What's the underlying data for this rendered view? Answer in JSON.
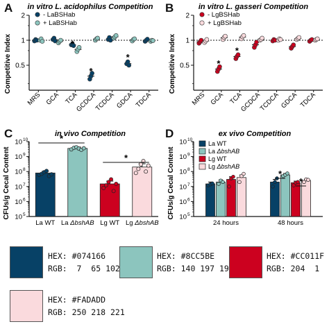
{
  "panels": [
    {
      "letter": "A",
      "title": "in vitro L. acidophilus Competition",
      "ylabel": "Competitive Index",
      "legend": [
        "- LaBSHab",
        "+ LaBSHab"
      ],
      "categories": [
        "MRS",
        "GCA",
        "TCA",
        "GCDCA",
        "TCDCA",
        "GDCA",
        "TDCA"
      ],
      "ylim": [
        0.25,
        2
      ],
      "yticks": [
        "2",
        "1",
        "0.5"
      ],
      "colors": {
        "minus": "#074166",
        "plus": "#8CC5BE"
      }
    },
    {
      "letter": "B",
      "title": "in vitro L. gasseri Competition",
      "ylabel": "Competitive Index",
      "legend": [
        "- LgBSHab",
        "+ LgBSHab"
      ],
      "categories": [
        "MRS",
        "GCA",
        "TCA",
        "GCDCA",
        "TCDCA",
        "GDCA",
        "TDCA"
      ],
      "ylim": [
        0.25,
        2
      ],
      "yticks": [
        "2",
        "1",
        "0.5"
      ],
      "colors": {
        "minus": "#CC011F",
        "plus": "#FADADD"
      }
    },
    {
      "letter": "C",
      "title": "in vivo Competition",
      "ylabel": "CFUs/g Cecal Content",
      "categories": [
        "La WT",
        "La ΔbshAB",
        "Lg WT",
        "Lg ΔbshAB"
      ],
      "ylim": [
        100000,
        10000000000
      ],
      "yticks": [
        "10",
        "10",
        "10",
        "10",
        "10",
        "10"
      ],
      "ytick_exp": [
        "10",
        "9",
        "8",
        "7",
        "6",
        "5"
      ]
    },
    {
      "letter": "D",
      "title": "ex vivo Competition",
      "ylabel": "CFUs/g Cecal Content",
      "legend": [
        "La WT",
        "La ΔbshAB",
        "Lg WT",
        "Lg ΔbshAB"
      ],
      "categories": [
        "24 hours",
        "48 hours"
      ],
      "ylim": [
        100000,
        10000000000
      ],
      "yticks": [
        "10",
        "10",
        "10",
        "10",
        "10",
        "10"
      ],
      "ytick_exp": [
        "10",
        "9",
        "8",
        "7",
        "6",
        "5"
      ]
    }
  ],
  "chart_data": [
    {
      "type": "scatter",
      "title": "in vitro L. acidophilus Competition",
      "ylabel": "Competitive Index",
      "yscale": "log2",
      "ylim": [
        0.25,
        2
      ],
      "categories": [
        "MRS",
        "GCA",
        "TCA",
        "GCDCA",
        "TCDCA",
        "GDCA",
        "TDCA"
      ],
      "series": [
        {
          "name": "- LaBSHab",
          "values": [
            [
              0.98,
              1.02,
              1.0
            ],
            [
              1.02,
              1.06,
              0.98
            ],
            [
              0.88,
              0.9,
              0.86
            ],
            [
              0.34,
              0.37,
              0.4
            ],
            [
              1.02,
              1.08,
              1.0
            ],
            [
              0.52,
              0.55,
              0.5
            ],
            [
              0.97,
              1.0,
              1.03
            ]
          ]
        },
        {
          "name": "+ LaBSHab",
          "values": [
            [
              1.0,
              1.04,
              0.97
            ],
            [
              0.93,
              0.97,
              1.0
            ],
            [
              0.73,
              0.78,
              0.82
            ],
            [
              1.0,
              1.04,
              1.06
            ],
            [
              1.06,
              1.1,
              1.14
            ],
            [
              0.98,
              1.02,
              1.04
            ],
            [
              0.97,
              1.0,
              0.99
            ]
          ]
        }
      ],
      "significance": [
        "",
        "",
        "*",
        "*",
        "",
        "*",
        ""
      ]
    },
    {
      "type": "scatter",
      "title": "in vitro L. gasseri Competition",
      "ylabel": "Competitive Index",
      "yscale": "log2",
      "ylim": [
        0.25,
        2
      ],
      "categories": [
        "MRS",
        "GCA",
        "TCA",
        "GCDCA",
        "TCDCA",
        "GDCA",
        "TDCA"
      ],
      "series": [
        {
          "name": "- LgBSHab",
          "values": [
            [
              0.92,
              0.96,
              1.0
            ],
            [
              0.42,
              0.45,
              0.48
            ],
            [
              0.6,
              0.64,
              0.67
            ],
            [
              0.82,
              0.88,
              0.95
            ],
            [
              0.98,
              1.02,
              1.0
            ],
            [
              0.8,
              0.84,
              0.88
            ],
            [
              0.97,
              1.0,
              1.02
            ]
          ]
        },
        {
          "name": "+ LgBSHab",
          "values": [
            [
              0.94,
              0.98,
              1.02
            ],
            [
              1.02,
              1.08,
              1.12
            ],
            [
              1.04,
              1.1,
              1.14
            ],
            [
              1.0,
              1.02,
              1.06
            ],
            [
              1.0,
              1.04,
              1.02
            ],
            [
              1.02,
              1.05,
              1.08
            ],
            [
              1.0,
              1.02,
              1.04
            ]
          ]
        }
      ],
      "significance": [
        "",
        "*",
        "*",
        "",
        "",
        "",
        ""
      ]
    },
    {
      "type": "bar",
      "title": "in vivo Competition",
      "ylabel": "CFUs/g Cecal Content",
      "yscale": "log10",
      "ylim": [
        100000,
        10000000000
      ],
      "categories": [
        "La WT",
        "La ΔbshAB",
        "Lg WT",
        "Lg ΔbshAB"
      ],
      "values": [
        80000000,
        3500000000,
        15000000,
        200000000
      ],
      "errors": [
        25000000,
        800000000,
        8000000,
        130000000
      ],
      "points": [
        [
          60000000,
          70000000,
          90000000,
          110000000,
          50000000,
          65000000
        ],
        [
          3000000000,
          3800000000,
          4200000000,
          3400000000,
          2800000000,
          3600000000
        ],
        [
          8000000,
          12000000,
          20000000,
          30000000,
          5000000,
          15000000
        ],
        [
          80000000,
          150000000,
          300000000,
          500000000,
          100000000,
          250000000
        ]
      ],
      "colors": [
        "#074166",
        "#8CC5BE",
        "#CC011F",
        "#FADADD"
      ],
      "significance": [
        {
          "between": [
            "La WT",
            "La ΔbshAB"
          ],
          "label": "*"
        },
        {
          "between": [
            "Lg WT",
            "Lg ΔbshAB"
          ],
          "label": "*"
        }
      ]
    },
    {
      "type": "bar",
      "title": "ex vivo Competition",
      "ylabel": "CFUs/g Cecal Content",
      "yscale": "log10",
      "ylim": [
        100000,
        10000000000
      ],
      "categories": [
        "24 hours",
        "48 hours"
      ],
      "series": [
        {
          "name": "La WT",
          "values": [
            15000000,
            20000000
          ],
          "errors": [
            5000000,
            10000000
          ],
          "points": [
            [
              12000000,
              14000000,
              16000000
            ],
            [
              10000000,
              20000000,
              35000000
            ]
          ]
        },
        {
          "name": "La ΔbshAB",
          "values": [
            20000000,
            60000000
          ],
          "errors": [
            8000000,
            15000000
          ],
          "points": [
            [
              15000000,
              25000000,
              20000000
            ],
            [
              50000000,
              60000000,
              75000000
            ]
          ]
        },
        {
          "name": "Lg WT",
          "values": [
            30000000,
            18000000
          ],
          "errors": [
            15000000,
            5000000
          ],
          "points": [
            [
              10000000,
              35000000,
              45000000
            ],
            [
              12000000,
              18000000,
              20000000
            ]
          ]
        },
        {
          "name": "Lg ΔbshAB",
          "values": [
            40000000,
            25000000
          ],
          "errors": [
            20000000,
            5000000
          ],
          "points": [
            [
              20000000,
              50000000,
              70000000
            ],
            [
              20000000,
              30000000,
              28000000
            ]
          ]
        }
      ],
      "colors": [
        "#074166",
        "#8CC5BE",
        "#CC011F",
        "#FADADD"
      ],
      "significance": [
        {
          "between": [
            "La WT",
            "La ΔbshAB"
          ],
          "group": "48 hours",
          "label": "*"
        },
        {
          "between": [
            "Lg WT",
            "Lg ΔbshAB"
          ],
          "group": "48 hours",
          "label": "*"
        }
      ]
    }
  ],
  "swatches": [
    {
      "hex_label": "HEX: #074166",
      "rgb_label": "RGB:  7  65 102",
      "color": "#074166"
    },
    {
      "hex_label": "HEX: #8CC5BE",
      "rgb_label": "RGB: 140 197 190",
      "color": "#8CC5BE"
    },
    {
      "hex_label": "HEX: #CC011F",
      "rgb_label": "RGB: 204  1  31",
      "color": "#CC011F"
    },
    {
      "hex_label": "HEX: #FADADD",
      "rgb_label": "RGB: 250 218 221",
      "color": "#FADADD"
    }
  ]
}
